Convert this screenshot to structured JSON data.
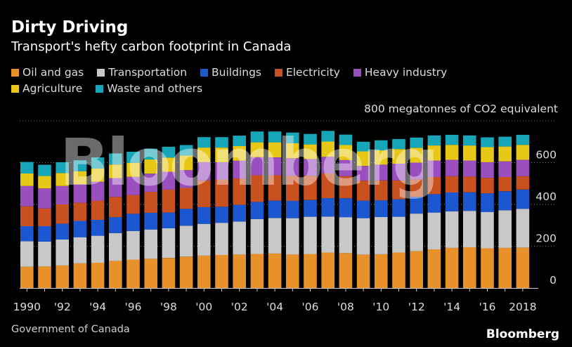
{
  "title": "Dirty Driving",
  "subtitle": "Transport's hefty carbon footprint in Canada",
  "legend": [
    {
      "label": "Oil and gas",
      "color": "#e8902a"
    },
    {
      "label": "Transportation",
      "color": "#c8c8c8"
    },
    {
      "label": "Buildings",
      "color": "#1a57d0"
    },
    {
      "label": "Electricity",
      "color": "#c9501f"
    },
    {
      "label": "Heavy industry",
      "color": "#9a4fbf"
    },
    {
      "label": "Agriculture",
      "color": "#e8c816"
    },
    {
      "label": "Waste and others",
      "color": "#17a6b8"
    }
  ],
  "unit_label": "800 megatonnes of CO2 equivalent",
  "source": "Government of Canada",
  "brand": "Bloomberg",
  "watermark": "Bloomberg",
  "chart_data": {
    "type": "bar",
    "stacked": true,
    "x": [
      1990,
      1991,
      1992,
      1993,
      1994,
      1995,
      1996,
      1997,
      1998,
      1999,
      2000,
      2001,
      2002,
      2003,
      2004,
      2005,
      2006,
      2007,
      2008,
      2009,
      2010,
      2011,
      2012,
      2013,
      2014,
      2015,
      2016,
      2017,
      2018
    ],
    "x_tick_labels": [
      "1990",
      "",
      "'92",
      "",
      "'94",
      "",
      "'96",
      "",
      "'98",
      "",
      "'00",
      "",
      "'02",
      "",
      "'04",
      "",
      "'06",
      "",
      "'08",
      "",
      "'10",
      "",
      "'12",
      "",
      "'14",
      "",
      "'16",
      "",
      "2018"
    ],
    "y_ticks": [
      0,
      200,
      400,
      600
    ],
    "y_tick_labels": [
      "0",
      "200",
      "400",
      "600"
    ],
    "ylim": [
      0,
      800
    ],
    "grid": true,
    "legend_position": "top",
    "series": [
      {
        "name": "Oil and gas",
        "color": "#e8902a",
        "values": [
          102,
          103,
          108,
          118,
          121,
          130,
          136,
          140,
          144,
          150,
          155,
          158,
          160,
          163,
          165,
          160,
          163,
          170,
          167,
          160,
          162,
          170,
          176,
          185,
          192,
          195,
          190,
          192,
          193
        ]
      },
      {
        "name": "Transportation",
        "color": "#c8c8c8",
        "values": [
          122,
          119,
          124,
          125,
          129,
          133,
          137,
          140,
          142,
          148,
          152,
          154,
          158,
          167,
          170,
          174,
          178,
          172,
          172,
          174,
          178,
          171,
          180,
          176,
          175,
          174,
          174,
          180,
          186
        ]
      },
      {
        "name": "Buildings",
        "color": "#1a57d0",
        "values": [
          72,
          74,
          76,
          78,
          76,
          76,
          82,
          80,
          75,
          81,
          80,
          77,
          80,
          82,
          83,
          83,
          80,
          88,
          90,
          84,
          80,
          84,
          80,
          88,
          90,
          89,
          89,
          91,
          92
        ]
      },
      {
        "name": "Electricity",
        "color": "#c9501f",
        "values": [
          95,
          85,
          92,
          87,
          92,
          97,
          90,
          100,
          110,
          100,
          128,
          130,
          126,
          128,
          122,
          120,
          116,
          118,
          106,
          96,
          95,
          90,
          84,
          82,
          78,
          75,
          74,
          68,
          64
        ]
      },
      {
        "name": "Heavy industry",
        "color": "#9a4fbf",
        "values": [
          97,
          95,
          88,
          88,
          90,
          90,
          87,
          87,
          85,
          85,
          87,
          83,
          85,
          86,
          85,
          84,
          80,
          80,
          77,
          70,
          75,
          80,
          80,
          79,
          78,
          77,
          75,
          75,
          78
        ]
      },
      {
        "name": "Agriculture",
        "color": "#e8c816",
        "values": [
          60,
          60,
          62,
          63,
          64,
          65,
          67,
          68,
          68,
          70,
          70,
          70,
          70,
          71,
          72,
          72,
          70,
          73,
          72,
          70,
          69,
          70,
          71,
          72,
          72,
          72,
          72,
          71,
          72
        ]
      },
      {
        "name": "Waste and others",
        "color": "#17a6b8",
        "values": [
          55,
          54,
          52,
          52,
          53,
          53,
          53,
          52,
          52,
          50,
          50,
          50,
          50,
          52,
          52,
          51,
          50,
          51,
          50,
          46,
          48,
          48,
          49,
          48,
          48,
          48,
          47,
          47,
          48
        ]
      }
    ]
  }
}
